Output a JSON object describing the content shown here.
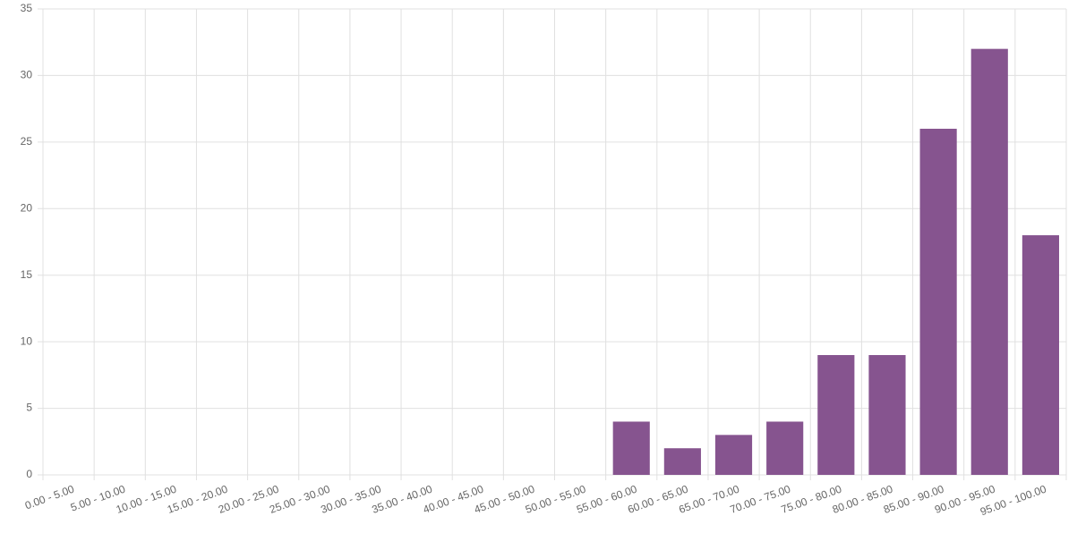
{
  "chart_data": {
    "type": "bar",
    "categories": [
      "0.00 - 5.00",
      "5.00 - 10.00",
      "10.00 - 15.00",
      "15.00 - 20.00",
      "20.00 - 25.00",
      "25.00 - 30.00",
      "30.00 - 35.00",
      "35.00 - 40.00",
      "40.00 - 45.00",
      "45.00 - 50.00",
      "50.00 - 55.00",
      "55.00 - 60.00",
      "60.00 - 65.00",
      "65.00 - 70.00",
      "70.00 - 75.00",
      "75.00 - 80.00",
      "80.00 - 85.00",
      "85.00 - 90.00",
      "90.00 - 95.00",
      "95.00 - 100.00"
    ],
    "values": [
      0,
      0,
      0,
      0,
      0,
      0,
      0,
      0,
      0,
      0,
      0,
      4,
      2,
      3,
      4,
      9,
      9,
      26,
      32,
      18
    ],
    "color": "#86548f",
    "ylim": [
      0,
      35
    ],
    "yticks": [
      0,
      5,
      10,
      15,
      20,
      25,
      30,
      35
    ],
    "grid": true
  }
}
